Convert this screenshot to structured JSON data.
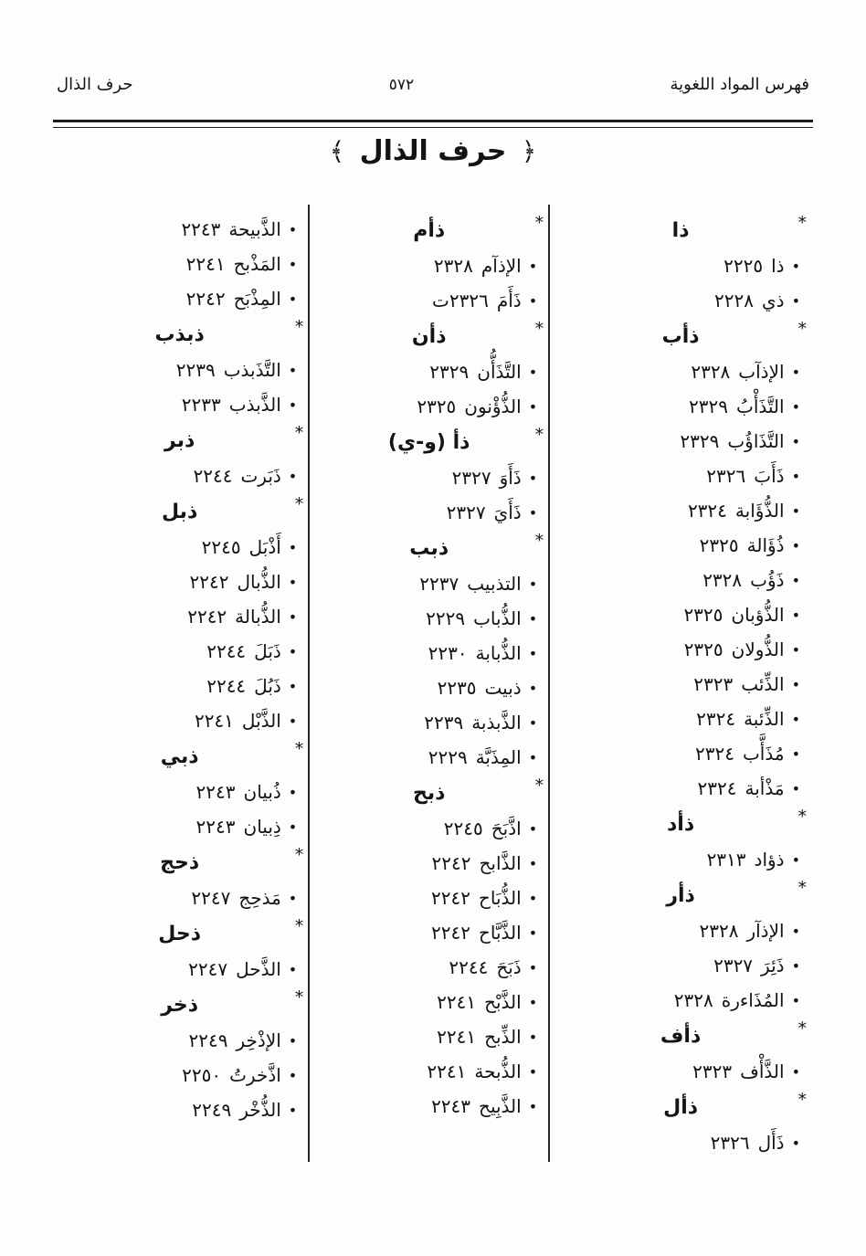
{
  "header": {
    "right_title": "فهرس المواد اللغوية",
    "page_number": "٥٧٢",
    "left_title": "حرف الذال"
  },
  "section_title": {
    "open": "﴿",
    "text": "حرف الذال",
    "close": "﴾"
  },
  "marks": {
    "root_marker": "*",
    "entry_bullet": "•"
  },
  "columns": [
    {
      "blocks": [
        {
          "root": "ذا",
          "entries": [
            {
              "word": "ذا",
              "page": "٢٢٢٥"
            },
            {
              "word": "ذي",
              "page": "٢٢٢٨"
            }
          ]
        },
        {
          "root": "ذأب",
          "entries": [
            {
              "word": "الإذآب",
              "page": "٢٣٢٨"
            },
            {
              "word": "التَّذَأْبُ",
              "page": "٢٣٢٩"
            },
            {
              "word": "التَّذَاؤُب",
              "page": "٢٣٢٩"
            },
            {
              "word": "ذَأَبَ",
              "page": "٢٣٢٦"
            },
            {
              "word": "الذُّؤَابة",
              "page": "٢٣٢٤"
            },
            {
              "word": "ذُؤَالة",
              "page": "٢٣٢٥"
            },
            {
              "word": "ذَؤُب",
              "page": "٢٣٢٨"
            },
            {
              "word": "الذُّؤبان",
              "page": "٢٣٢٥"
            },
            {
              "word": "الذُّولان",
              "page": "٢٣٢٥"
            },
            {
              "word": "الذِّئب",
              "page": "٢٣٢٣"
            },
            {
              "word": "الذِّئبة",
              "page": "٢٣٢٤"
            },
            {
              "word": "مُذَأَّب",
              "page": "٢٣٢٤"
            },
            {
              "word": "مَذْأبة",
              "page": "٢٣٢٤"
            }
          ]
        },
        {
          "root": "ذأد",
          "entries": [
            {
              "word": "ذؤاد",
              "page": "٢٣١٣"
            }
          ]
        },
        {
          "root": "ذأر",
          "entries": [
            {
              "word": "الإذآر",
              "page": "٢٣٢٨"
            },
            {
              "word": "ذَئِرَ",
              "page": "٢٣٢٧"
            },
            {
              "word": "المُذَاءرة",
              "page": "٢٣٢٨"
            }
          ]
        },
        {
          "root": "ذأف",
          "entries": [
            {
              "word": "الذَّأْف",
              "page": "٢٣٢٣"
            }
          ]
        },
        {
          "root": "ذأل",
          "entries": [
            {
              "word": "ذَأَل",
              "page": "٢٣٢٦"
            }
          ]
        }
      ]
    },
    {
      "blocks": [
        {
          "root": "ذأم",
          "entries": [
            {
              "word": "الإذآم",
              "page": "٢٣٢٨"
            },
            {
              "word": "ذَأَمَ",
              "page": "٢٣٢٦ت"
            }
          ]
        },
        {
          "root": "ذأن",
          "entries": [
            {
              "word": "التَّذَأُّن",
              "page": "٢٣٢٩"
            },
            {
              "word": "الذُّؤْنون",
              "page": "٢٣٢٥"
            }
          ]
        },
        {
          "root": "ذأ (و-ي)",
          "entries": [
            {
              "word": "ذَأَوَ",
              "page": "٢٣٢٧"
            },
            {
              "word": "ذَأَيَ",
              "page": "٢٣٢٧"
            }
          ]
        },
        {
          "root": "ذبب",
          "entries": [
            {
              "word": "التذبيب",
              "page": "٢٢٣٧"
            },
            {
              "word": "الذُّباب",
              "page": "٢٢٢٩"
            },
            {
              "word": "الذُّبابة",
              "page": "٢٢٣٠"
            },
            {
              "word": "ذبيت",
              "page": "٢٢٣٥"
            },
            {
              "word": "الذَّبذبة",
              "page": "٢٢٣٩"
            },
            {
              "word": "المِذَبَّة",
              "page": "٢٢٢٩"
            }
          ]
        },
        {
          "root": "ذبح",
          "entries": [
            {
              "word": "اذَّبَحَ",
              "page": "٢٢٤٥"
            },
            {
              "word": "الذَّابح",
              "page": "٢٢٤٢"
            },
            {
              "word": "الذُّبَاح",
              "page": "٢٢٤٢"
            },
            {
              "word": "الذَّبَّاح",
              "page": "٢٢٤٢"
            },
            {
              "word": "ذَبَحَ",
              "page": "٢٢٤٤"
            },
            {
              "word": "الذَّبْح",
              "page": "٢٢٤١"
            },
            {
              "word": "الذِّبح",
              "page": "٢٢٤١"
            },
            {
              "word": "الذُّبحة",
              "page": "٢٢٤١"
            },
            {
              "word": "الذَّبِيح",
              "page": "٢٢٤٣"
            }
          ]
        }
      ]
    },
    {
      "blocks": [
        {
          "root": "",
          "entries": [
            {
              "word": "الذَّبيحة",
              "page": "٢٢٤٣"
            },
            {
              "word": "المَذْبح",
              "page": "٢٢٤١"
            },
            {
              "word": "المِذْبَح",
              "page": "٢٢٤٢"
            }
          ]
        },
        {
          "root": "ذبذب",
          "entries": [
            {
              "word": "التَّذَبذب",
              "page": "٢٢٣٩"
            },
            {
              "word": "الذَّبذب",
              "page": "٢٢٣٣"
            }
          ]
        },
        {
          "root": "ذبر",
          "entries": [
            {
              "word": "ذَبَرت",
              "page": "٢٢٤٤"
            }
          ]
        },
        {
          "root": "ذبل",
          "entries": [
            {
              "word": "أَذْبَل",
              "page": "٢٢٤٥"
            },
            {
              "word": "الذُّبال",
              "page": "٢٢٤٢"
            },
            {
              "word": "الذُّبالة",
              "page": "٢٢٤٢"
            },
            {
              "word": "ذَبَلَ",
              "page": "٢٢٤٤"
            },
            {
              "word": "ذَبُلَ",
              "page": "٢٢٤٤"
            },
            {
              "word": "الذَّبْل",
              "page": "٢٢٤١"
            }
          ]
        },
        {
          "root": "ذبي",
          "entries": [
            {
              "word": "ذُبيان",
              "page": "٢٢٤٣"
            },
            {
              "word": "ذِبيان",
              "page": "٢٢٤٣"
            }
          ]
        },
        {
          "root": "ذحج",
          "entries": [
            {
              "word": "مَذحِج",
              "page": "٢٢٤٧"
            }
          ]
        },
        {
          "root": "ذحل",
          "entries": [
            {
              "word": "الذَّحل",
              "page": "٢٢٤٧"
            }
          ]
        },
        {
          "root": "ذخر",
          "entries": [
            {
              "word": "الإذْخِر",
              "page": "٢٢٤٩"
            },
            {
              "word": "اذَّخرتُ",
              "page": "٢٢٥٠"
            },
            {
              "word": "الذُّخْر",
              "page": "٢٢٤٩"
            }
          ]
        }
      ]
    }
  ]
}
